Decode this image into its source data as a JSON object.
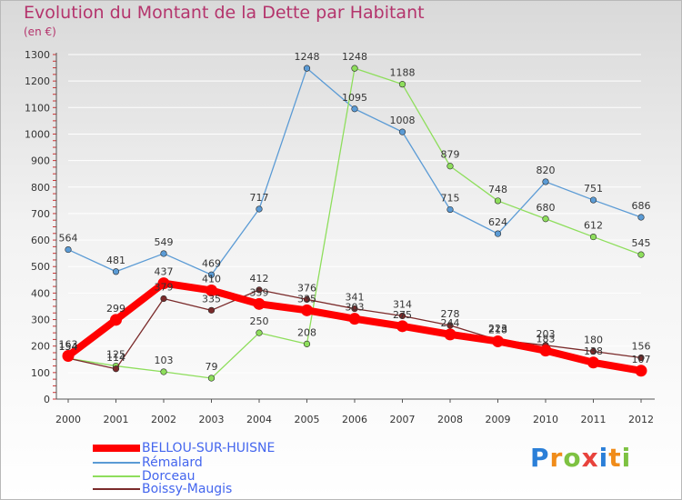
{
  "chart_data": {
    "type": "line",
    "title": "Evolution du Montant de la Dette par Habitant",
    "subtitle": "(en €)",
    "ylim": [
      0,
      1300
    ],
    "yticks": [
      0,
      100,
      200,
      300,
      400,
      500,
      600,
      700,
      800,
      900,
      1000,
      1100,
      1200,
      1300
    ],
    "categories": [
      "2000",
      "2001",
      "2002",
      "2003",
      "2004",
      "2005",
      "2006",
      "2007",
      "2008",
      "2009",
      "2010",
      "2011",
      "2012"
    ],
    "series": [
      {
        "name": "BELLOU-SUR-HUISNE",
        "color": "#ff0000",
        "values": [
          163,
          299,
          437,
          410,
          359,
          335,
          303,
          275,
          244,
          218,
          183,
          138,
          107
        ],
        "labels": [
          "163",
          "299",
          "437",
          "410",
          "359",
          "335",
          "303",
          "275",
          "244",
          "218",
          "183",
          "138",
          "107"
        ]
      },
      {
        "name": "Rémalard",
        "color": "#5b9bd5",
        "values": [
          564,
          481,
          549,
          469,
          717,
          1248,
          1095,
          1008,
          715,
          624,
          820,
          751,
          686
        ],
        "labels": [
          "564",
          "481",
          "549",
          "469",
          "717",
          "1248",
          "1095",
          "1008",
          "715",
          "624",
          "820",
          "751",
          "686"
        ]
      },
      {
        "name": "Dorceau",
        "color": "#8ede5c",
        "values": [
          154,
          125,
          103,
          79,
          250,
          208,
          1248,
          1188,
          879,
          748,
          680,
          612,
          545
        ],
        "labels": [
          "154",
          "125",
          "103",
          "79",
          "250",
          "208",
          "1248",
          "1188",
          "879",
          "748",
          "680",
          "612",
          "545"
        ]
      },
      {
        "name": "Boissy-Maugis",
        "color": "#7a2a2a",
        "values": [
          154,
          114,
          379,
          335,
          412,
          376,
          341,
          314,
          278,
          223,
          203,
          180,
          156
        ],
        "labels": [
          "154",
          "114",
          "379",
          "335",
          "412",
          "376",
          "341",
          "314",
          "278",
          "223",
          "203",
          "180",
          "156"
        ]
      }
    ]
  },
  "legend": [
    {
      "label": "BELLOU-SUR-HUISNE",
      "color": "#ff0000",
      "text_color": "#4466ee"
    },
    {
      "label": "Rémalard",
      "color": "#5b9bd5",
      "text_color": "#4466ee"
    },
    {
      "label": "Dorceau",
      "color": "#8ede5c",
      "text_color": "#4466ee"
    },
    {
      "label": "Boissy-Maugis",
      "color": "#7a2a2a",
      "text_color": "#4466ee"
    }
  ],
  "logo": {
    "letters": [
      "P",
      "r",
      "o",
      "x",
      "i",
      "t",
      "i"
    ],
    "colors": [
      "#2b7fd8",
      "#f08c1a",
      "#7ec242",
      "#e8433d",
      "#2b7fd8",
      "#f08c1a",
      "#7ec242"
    ]
  }
}
